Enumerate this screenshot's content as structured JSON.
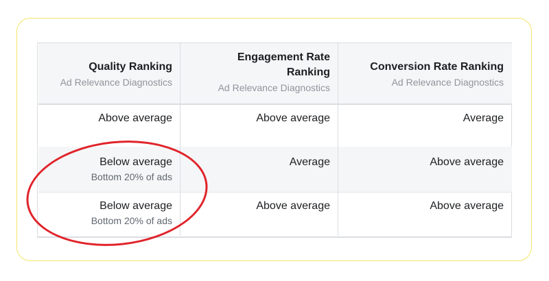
{
  "table": {
    "columns": [
      {
        "title_line1": "Quality Ranking",
        "title_line2": "",
        "subtitle": "Ad Relevance Diagnostics"
      },
      {
        "title_line1": "Engagement Rate",
        "title_line2": "Ranking",
        "subtitle": "Ad Relevance Diagnostics"
      },
      {
        "title_line1": "Conversion Rate Ranking",
        "title_line2": "",
        "subtitle": "Ad Relevance Diagnostics"
      }
    ],
    "rows": [
      [
        {
          "main": "Above average",
          "sub": ""
        },
        {
          "main": "Above average",
          "sub": ""
        },
        {
          "main": "Average",
          "sub": ""
        }
      ],
      [
        {
          "main": "Below average",
          "sub": "Bottom 20% of ads"
        },
        {
          "main": "Average",
          "sub": ""
        },
        {
          "main": "Above average",
          "sub": ""
        }
      ],
      [
        {
          "main": "Below average",
          "sub": "Bottom 20% of ads"
        },
        {
          "main": "Above average",
          "sub": ""
        },
        {
          "main": "Above average",
          "sub": ""
        }
      ]
    ]
  },
  "colors": {
    "frame_border": "#f3e46a",
    "highlight_circle": "#e0232a",
    "header_bg": "#f5f6f7",
    "muted_text": "#90949c"
  }
}
